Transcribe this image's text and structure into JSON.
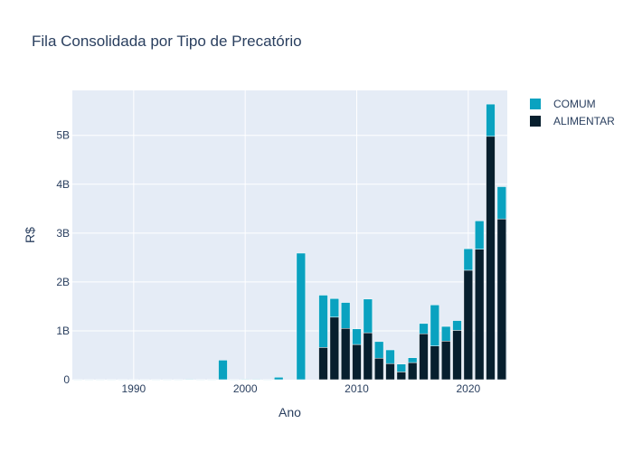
{
  "chart_data": {
    "type": "bar",
    "barmode": "stack",
    "title": "Fila Consolidada por Tipo de Precatório",
    "xlabel": "Ano",
    "ylabel": "R$",
    "xlim": [
      1984.5,
      2023.5
    ],
    "ylim": [
      0,
      5.92
    ],
    "x_ticks": [
      {
        "value": 1990,
        "label": "1990"
      },
      {
        "value": 2000,
        "label": "2000"
      },
      {
        "value": 2010,
        "label": "2010"
      },
      {
        "value": 2020,
        "label": "2020"
      }
    ],
    "y_ticks": [
      {
        "value": 0,
        "label": "0"
      },
      {
        "value": 1,
        "label": "1B"
      },
      {
        "value": 2,
        "label": "2B"
      },
      {
        "value": 3,
        "label": "3B"
      },
      {
        "value": 4,
        "label": "4B"
      },
      {
        "value": 5,
        "label": "5B"
      }
    ],
    "grid": true,
    "legend_position": "top-right",
    "x": [
      1985,
      1986,
      1987,
      1988,
      1989,
      1990,
      1991,
      1992,
      1993,
      1994,
      1995,
      1996,
      1997,
      1998,
      1999,
      2000,
      2001,
      2002,
      2003,
      2004,
      2005,
      2006,
      2007,
      2008,
      2009,
      2010,
      2011,
      2012,
      2013,
      2014,
      2015,
      2016,
      2017,
      2018,
      2019,
      2020,
      2021,
      2022,
      2023
    ],
    "series": [
      {
        "name": "ALIMENTAR",
        "color": "#071f2e",
        "values": [
          0,
          0,
          0,
          0,
          0,
          0,
          0,
          0,
          0,
          0,
          0,
          0,
          0,
          0,
          0,
          0,
          0,
          0,
          0,
          0,
          0,
          0,
          0.66,
          1.28,
          1.05,
          0.72,
          0.96,
          0.44,
          0.33,
          0.16,
          0.35,
          0.94,
          0.69,
          0.79,
          1.01,
          2.24,
          2.67,
          4.98,
          3.29
        ]
      },
      {
        "name": "COMUM",
        "color": "#0aa2c0",
        "values": [
          0.005,
          0.005,
          0.005,
          0.005,
          0.005,
          0.005,
          0.005,
          0.005,
          0.005,
          0.005,
          0.01,
          0.005,
          0.005,
          0.4,
          0.005,
          0.01,
          0.01,
          0.005,
          0.05,
          0,
          2.59,
          0,
          1.07,
          0.38,
          0.53,
          0.32,
          0.69,
          0.34,
          0.28,
          0.16,
          0.1,
          0.21,
          0.84,
          0.3,
          0.2,
          0.44,
          0.58,
          0.66,
          0.66
        ]
      }
    ]
  }
}
